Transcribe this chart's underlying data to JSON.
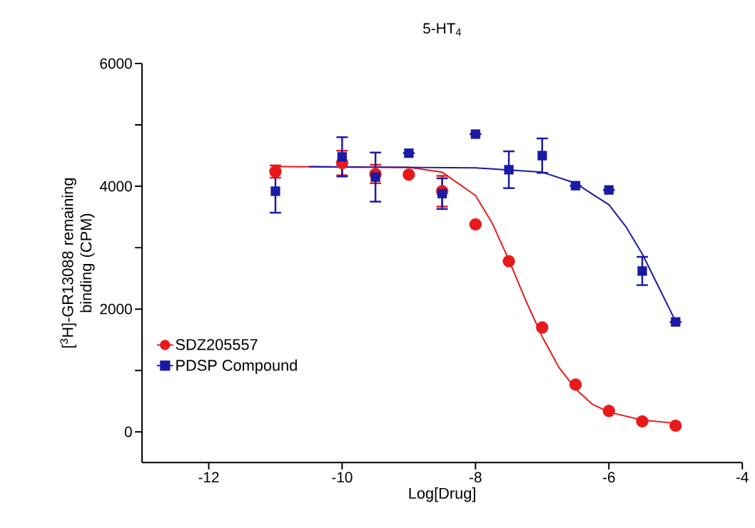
{
  "chart_data": {
    "type": "scatter",
    "title": "5-HT$_{4}$",
    "xlabel": "Log[Drug]",
    "ylabel": "[$^{3}$H]-GR13088 remaining binding (CPM)",
    "xlim": [
      -13,
      -4
    ],
    "xticks": [
      -12,
      -10,
      -8,
      -6,
      -4
    ],
    "ylim": [
      -500,
      6000
    ],
    "yticks": [
      0,
      {
        "value": 1000,
        "label": null
      },
      2000,
      {
        "value": 3000,
        "label": null
      },
      4000,
      {
        "value": 5000,
        "label": null
      },
      6000
    ],
    "grid": false,
    "legend": "bottom left",
    "series": [
      {
        "name": "SDZ205557",
        "color": "#e8191b",
        "marker": "circle",
        "x": [
          -11,
          -10,
          -9.5,
          -9,
          -8.5,
          -8,
          -7.5,
          -7,
          -6.5,
          -6,
          -5.5,
          -5
        ],
        "values": [
          4240,
          4380,
          4200,
          4190,
          3920,
          3380,
          2780,
          1700,
          770,
          340,
          170,
          100
        ],
        "errors": [
          100,
          200,
          150,
          null,
          250,
          null,
          null,
          null,
          null,
          null,
          null,
          null
        ]
      },
      {
        "name": "PDSP Compound",
        "color": "#1a1aa6",
        "marker": "square",
        "x": [
          -11,
          -10,
          -9.5,
          -9,
          -8.5,
          -8,
          -7.5,
          -7,
          -6.5,
          -6,
          -5.5,
          -5
        ],
        "values": [
          3920,
          4480,
          4150,
          4540,
          3880,
          4850,
          4270,
          4500,
          4010,
          3940,
          2620,
          1790
        ],
        "errors": [
          350,
          320,
          400,
          null,
          250,
          null,
          300,
          280,
          null,
          null,
          230,
          null
        ]
      },
      {
        "type": "line",
        "color": "#e8191b",
        "marker": "none",
        "x": [
          -11,
          -9,
          -8.5,
          -8,
          -7.75,
          -7.5,
          -7.25,
          -7,
          -6.75,
          -6.5,
          -6.25,
          -6,
          -5.5,
          -5
        ],
        "values": [
          4320,
          4310,
          4230,
          3850,
          3400,
          2800,
          2150,
          1550,
          1050,
          700,
          450,
          320,
          190,
          140
        ]
      },
      {
        "type": "line",
        "color": "#1a1aa6",
        "marker": "none",
        "x": [
          -10.5,
          -8,
          -7,
          -6.5,
          -6,
          -5.75,
          -5.5,
          -5.25,
          -5
        ],
        "values": [
          4320,
          4300,
          4230,
          4050,
          3700,
          3350,
          2900,
          2350,
          1800
        ]
      }
    ]
  }
}
